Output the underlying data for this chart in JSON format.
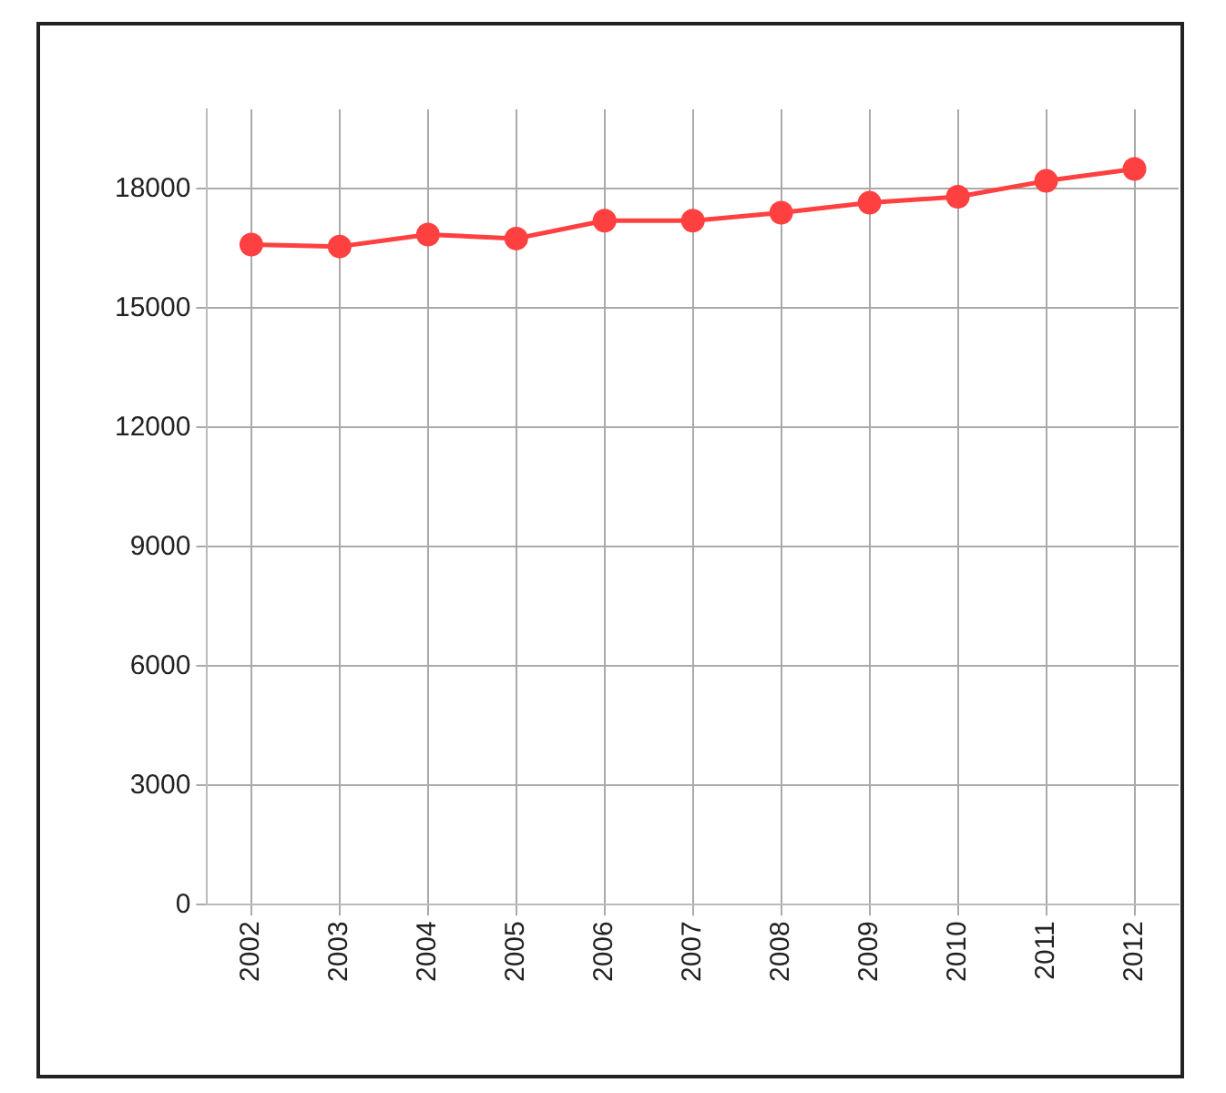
{
  "chart_data": {
    "type": "line",
    "categories": [
      "2002",
      "2003",
      "2004",
      "2005",
      "2006",
      "2007",
      "2008",
      "2009",
      "2010",
      "2011",
      "2012"
    ],
    "series": [
      {
        "color": "#ff4040",
        "values": [
          16600,
          16550,
          16850,
          16750,
          17200,
          17200,
          17400,
          17650,
          17800,
          18200,
          18500
        ]
      }
    ],
    "ylim": [
      0,
      20000
    ],
    "yticks": [
      0,
      3000,
      6000,
      9000,
      12000,
      15000,
      18000
    ],
    "grid": true,
    "marker": "circle",
    "line_style": "solid",
    "legend": false
  }
}
